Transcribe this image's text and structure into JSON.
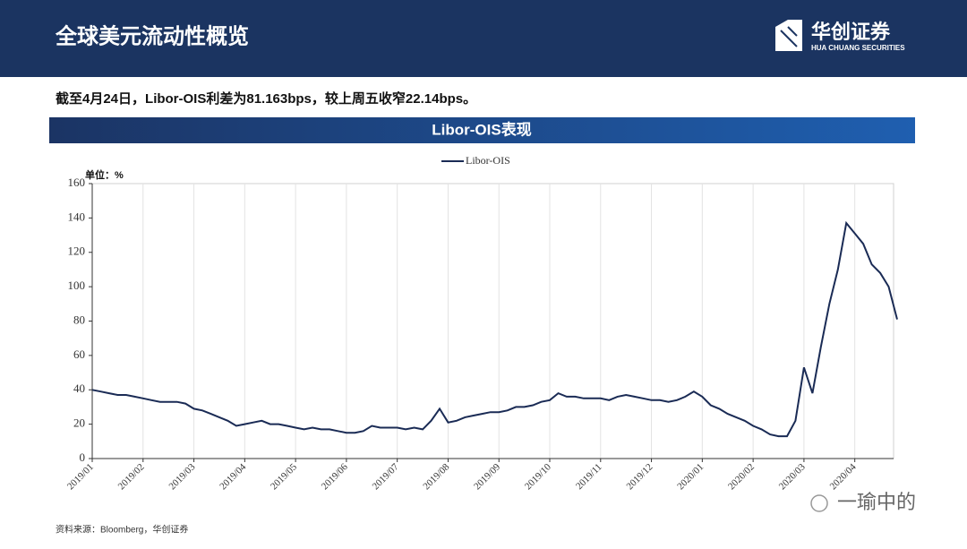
{
  "header": {
    "title": "全球美元流动性概览",
    "logo": "华创证券",
    "logo_en": "HUA CHUANG SECURITIES"
  },
  "subtitle": "截至4月24日，Libor-OIS利差为81.163bps，较上周五收窄22.14bps。",
  "section_title": "Libor-OIS表现",
  "source": "资料来源：Bloomberg，华创证券",
  "watermark": "一瑜中的",
  "chart_data": {
    "type": "line",
    "unit_label": "单位：%",
    "categories": [
      "2019/01",
      null,
      null,
      null,
      null,
      null,
      "2019/02",
      null,
      null,
      null,
      null,
      null,
      "2019/03",
      null,
      null,
      null,
      null,
      null,
      "2019/04",
      null,
      null,
      null,
      null,
      null,
      "2019/05",
      null,
      null,
      null,
      null,
      null,
      "2019/06",
      null,
      null,
      null,
      null,
      null,
      "2019/07",
      null,
      null,
      null,
      null,
      null,
      "2019/08",
      null,
      null,
      null,
      null,
      null,
      "2019/09",
      null,
      null,
      null,
      null,
      null,
      "2019/10",
      null,
      null,
      null,
      null,
      null,
      "2019/11",
      null,
      null,
      null,
      null,
      null,
      "2019/12",
      null,
      null,
      null,
      null,
      null,
      "2020/01",
      null,
      null,
      null,
      null,
      null,
      "2020/02",
      null,
      null,
      null,
      null,
      null,
      "2020/03",
      null,
      null,
      null,
      null,
      null,
      "2020/04",
      null,
      null,
      null,
      null,
      null
    ],
    "series": [
      {
        "name": "Libor-OIS",
        "color": "#1a2b55",
        "values": [
          40,
          39,
          38,
          37,
          37,
          36,
          35,
          34,
          33,
          33,
          33,
          32,
          29,
          28,
          26,
          24,
          22,
          19,
          20,
          21,
          22,
          20,
          20,
          19,
          18,
          17,
          18,
          17,
          17,
          16,
          15,
          15,
          16,
          19,
          18,
          18,
          18,
          17,
          18,
          17,
          22,
          29,
          21,
          22,
          24,
          25,
          26,
          27,
          27,
          28,
          30,
          30,
          31,
          33,
          34,
          38,
          36,
          36,
          35,
          35,
          35,
          34,
          36,
          37,
          36,
          35,
          34,
          34,
          33,
          34,
          36,
          39,
          36,
          31,
          29,
          26,
          24,
          22,
          19,
          17,
          14,
          13,
          13,
          22,
          53,
          38,
          65,
          90,
          110,
          137,
          131,
          125,
          113,
          108,
          100,
          81
        ]
      }
    ],
    "ylim": [
      0,
      160
    ],
    "yticks": [
      0,
      20,
      40,
      60,
      80,
      100,
      120,
      140,
      160
    ],
    "grid": true,
    "legend": "top"
  }
}
